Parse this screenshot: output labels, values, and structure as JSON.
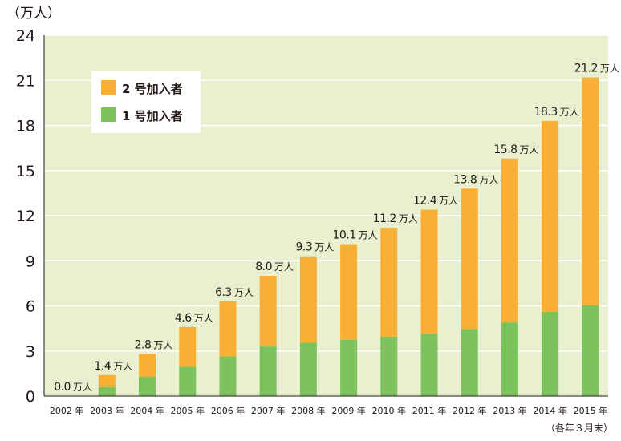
{
  "chart_data": {
    "type": "bar",
    "stacked": true,
    "ylabel": "（万人）",
    "note": "（各年３月末）",
    "unit": "万人",
    "ylim": [
      0,
      24
    ],
    "yticks": [
      0,
      3,
      6,
      9,
      12,
      15,
      18,
      21,
      24
    ],
    "categories": [
      "2002 年",
      "2003 年",
      "2004 年",
      "2005 年",
      "2006 年",
      "2007 年",
      "2008 年",
      "2009 年",
      "2010 年",
      "2011 年",
      "2012 年",
      "2013 年",
      "2014 年",
      "2015 年"
    ],
    "series": [
      {
        "name": "1 号加入者",
        "color": "#7cc25d",
        "values": [
          0.0,
          0.6,
          1.3,
          1.95,
          2.65,
          3.3,
          3.55,
          3.75,
          3.95,
          4.15,
          4.45,
          4.9,
          5.6,
          6.05
        ]
      },
      {
        "name": "2 号加入者",
        "color": "#f9ae34",
        "values": [
          0.0,
          0.8,
          1.5,
          2.65,
          3.65,
          4.7,
          5.75,
          6.35,
          7.25,
          8.25,
          9.35,
          10.9,
          12.7,
          15.15
        ]
      }
    ],
    "totals": [
      "0.0",
      "1.4",
      "2.8",
      "4.6",
      "6.3",
      "8.0",
      "9.3",
      "10.1",
      "11.2",
      "12.4",
      "13.8",
      "15.8",
      "18.3",
      "21.2"
    ],
    "legend_position": "top-left",
    "grid": true,
    "colors": {
      "plot_bg": "#e8f0d0",
      "grid": "#ffffff",
      "axis": "#231815"
    }
  }
}
